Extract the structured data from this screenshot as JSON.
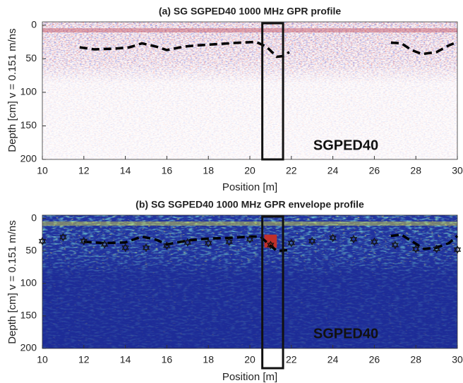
{
  "chart_data": [
    {
      "type": "line",
      "title": "(a)  SG SGPED40 1000 MHz GPR profile",
      "xlabel": "Position [m]",
      "ylabel": "Depth [cm]  v = 0.151 m/ns",
      "annotation": "SGPED40",
      "background": "#fbf4f4",
      "invert_y": true,
      "color": "#000000",
      "x": [
        11.8,
        12.5,
        13.5,
        14.2,
        14.8,
        15.5,
        16.0,
        16.8,
        17.5,
        18.5,
        19.5,
        20.3,
        20.8,
        21.3,
        21.6,
        21.9,
        null,
        26.8,
        27.3,
        27.8,
        28.3,
        29.0,
        29.6,
        30.0
      ],
      "values": [
        33,
        36,
        35,
        33,
        27,
        32,
        37,
        32,
        30,
        28,
        26,
        25,
        32,
        47,
        46,
        40,
        null,
        26,
        27,
        37,
        43,
        40,
        30,
        25
      ],
      "highlight_x": [
        20.6,
        21.6
      ],
      "xlim": [
        10,
        30
      ],
      "xticks": [
        10,
        12,
        14,
        16,
        18,
        20,
        22,
        24,
        26,
        28,
        30
      ],
      "ylim": [
        -5,
        200
      ],
      "yticks": [
        0,
        50,
        100,
        150,
        200
      ]
    },
    {
      "type": "line",
      "title": "(b)  SG SGPED40 1000 MHz GPR envelope profile",
      "xlabel": "Position [m]",
      "ylabel": "Depth [cm]  v = 0.151 m/ns",
      "annotation": "SGPED40",
      "background": "#2233a0",
      "invert_y": true,
      "color": "#000000",
      "x": [
        12.0,
        13.0,
        14.0,
        14.8,
        15.5,
        16.0,
        17.0,
        18.0,
        19.0,
        20.0,
        20.5,
        21.0,
        21.3,
        21.8,
        null,
        26.8,
        27.3,
        27.8,
        28.4,
        29.0,
        29.6,
        30.0
      ],
      "values": [
        36,
        38,
        37,
        28,
        33,
        40,
        34,
        31,
        30,
        28,
        28,
        42,
        50,
        49,
        null,
        27,
        25,
        35,
        47,
        45,
        38,
        27
      ],
      "markers": {
        "x": [
          10,
          11,
          12,
          13,
          14,
          15,
          16,
          17,
          18,
          19,
          20,
          21,
          22,
          23,
          24,
          25,
          26,
          27,
          28,
          29,
          30
        ],
        "values": [
          35,
          29,
          35,
          40,
          45,
          45,
          42,
          37,
          38,
          36,
          32,
          41,
          38,
          35,
          30,
          32,
          36,
          41,
          47,
          47,
          48
        ]
      },
      "highlight_x": [
        20.6,
        21.6
      ],
      "xlim": [
        10,
        30
      ],
      "xticks": [
        10,
        12,
        14,
        16,
        18,
        20,
        22,
        24,
        26,
        28,
        30
      ],
      "ylim": [
        -5,
        200
      ],
      "yticks": [
        0,
        50,
        100,
        150,
        200
      ]
    }
  ]
}
